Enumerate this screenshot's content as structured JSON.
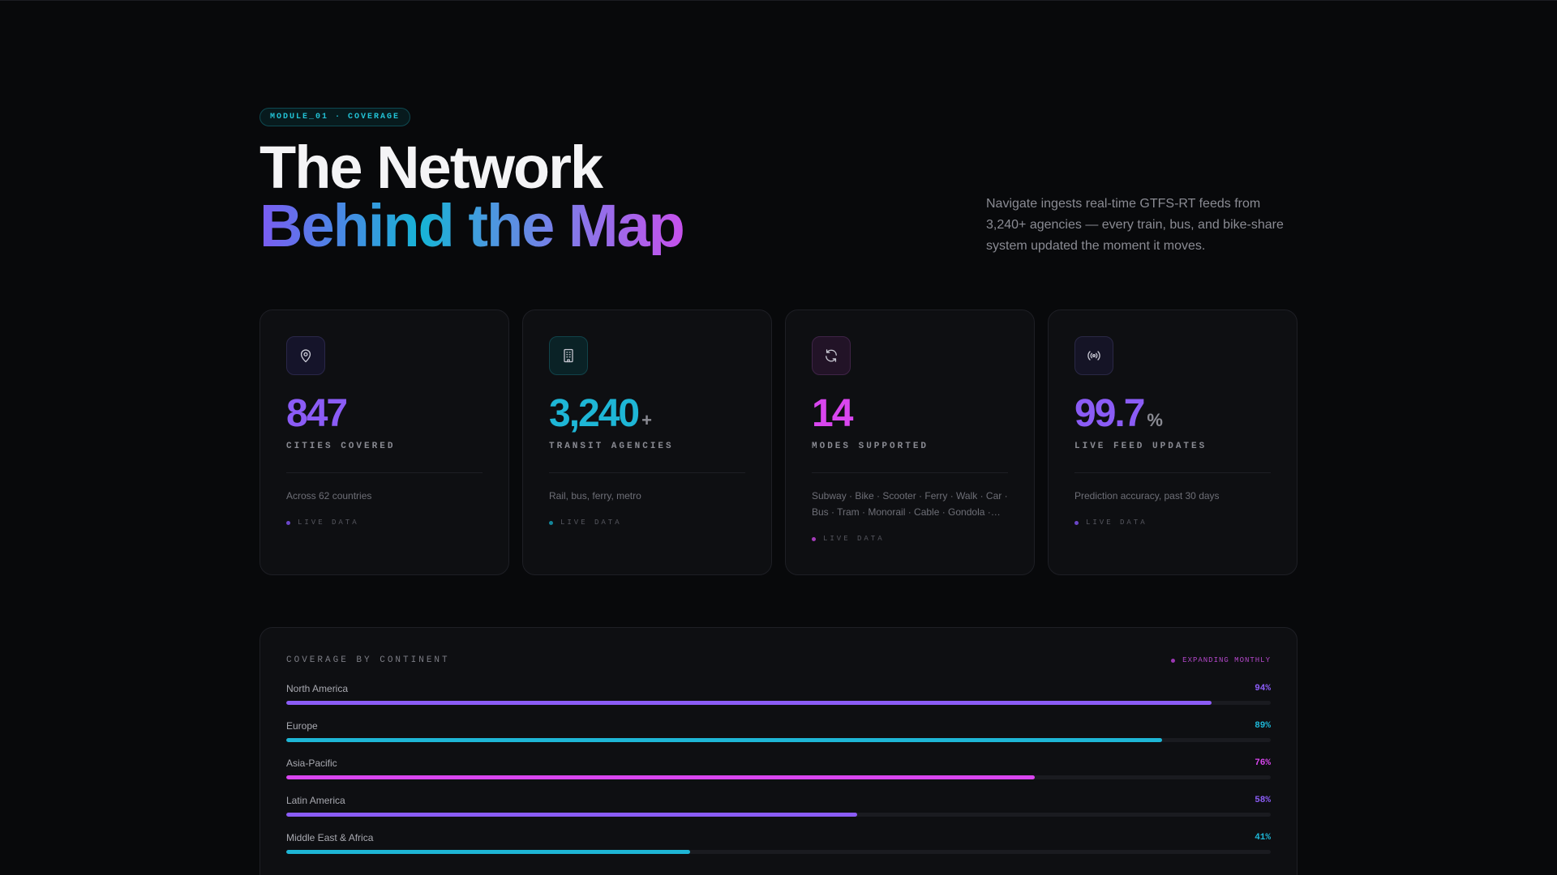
{
  "badge": "MODULE_01 · COVERAGE",
  "title": {
    "line1": "The Network",
    "line2": "Behind the Map"
  },
  "description": "Navigate ingests real-time GTFS-RT feeds from 3,240+ agencies — every train, bus, and bike-share system updated the moment it moves.",
  "cards": [
    {
      "icon": "map-pin-icon",
      "value": "847",
      "suffix": "",
      "label": "CITIES COVERED",
      "sub": "Across 62 countries",
      "live": "LIVE DATA",
      "accent": "#8b5cf6"
    },
    {
      "icon": "building-icon",
      "value": "3,240",
      "suffix": "+",
      "label": "TRANSIT AGENCIES",
      "sub": "Rail, bus, ferry, metro",
      "live": "LIVE DATA",
      "accent": "#1eb6d6"
    },
    {
      "icon": "refresh-icon",
      "value": "14",
      "suffix": "",
      "label": "MODES SUPPORTED",
      "sub": "Subway · Bike · Scooter · Ferry · Walk · Car · Bus · Tram · Monorail · Cable · Gondola ·…",
      "live": "LIVE DATA",
      "accent": "#d946ef"
    },
    {
      "icon": "broadcast-icon",
      "value": "99.7",
      "suffix": "%",
      "label": "LIVE FEED UPDATES",
      "sub": "Prediction accuracy, past 30 days",
      "live": "LIVE DATA",
      "accent": "#8b5cf6"
    }
  ],
  "coverage": {
    "title": "COVERAGE BY CONTINENT",
    "tag": "EXPANDING MONTHLY",
    "tag_color": "#b347c9",
    "rows": [
      {
        "name": "North America",
        "pct_label": "94%",
        "value": 94,
        "color": "#8b5cf6"
      },
      {
        "name": "Europe",
        "pct_label": "89%",
        "value": 89,
        "color": "#1eb6d6"
      },
      {
        "name": "Asia-Pacific",
        "pct_label": "76%",
        "value": 76,
        "color": "#d946ef"
      },
      {
        "name": "Latin America",
        "pct_label": "58%",
        "value": 58,
        "color": "#8b5cf6"
      },
      {
        "name": "Middle East & Africa",
        "pct_label": "41%",
        "value": 41,
        "color": "#1eb6d6"
      }
    ]
  }
}
